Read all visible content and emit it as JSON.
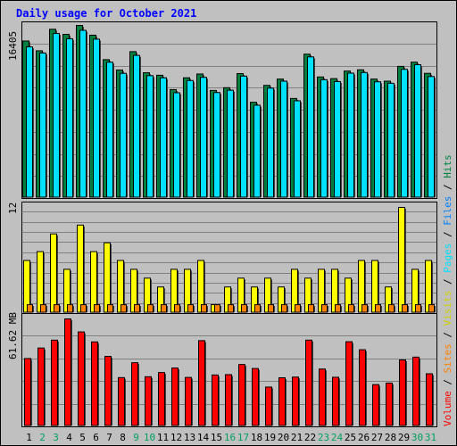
{
  "chart_data": {
    "type": "bar",
    "title": "Daily usage for October 2021",
    "days": [
      "1",
      "2",
      "3",
      "4",
      "5",
      "6",
      "7",
      "8",
      "9",
      "10",
      "11",
      "12",
      "13",
      "14",
      "15",
      "16",
      "17",
      "18",
      "19",
      "20",
      "21",
      "22",
      "23",
      "24",
      "25",
      "26",
      "27",
      "28",
      "29",
      "30",
      "31"
    ],
    "weekend_days": [
      2,
      3,
      9,
      10,
      16,
      17,
      23,
      24,
      30,
      31
    ],
    "top_panel": {
      "ymax_label": "16405",
      "ymax": 16405,
      "series": [
        {
          "name": "Hits",
          "color": "#008040",
          "values": [
            14928,
            14000,
            16040,
            15560,
            16405,
            15480,
            13160,
            12180,
            13920,
            11920,
            11680,
            10320,
            11440,
            11800,
            10240,
            10500,
            11840,
            9120,
            10720,
            11320,
            9480,
            13680,
            11520,
            11360,
            12080,
            12200,
            11320,
            11120,
            12520,
            12920,
            11860
          ]
        },
        {
          "name": "Files",
          "color": "#0080ff",
          "values": [
            14370,
            13790,
            15640,
            15140,
            15940,
            15100,
            12920,
            11860,
            13560,
            11640,
            11440,
            10020,
            11180,
            11480,
            10040,
            10260,
            11600,
            8840,
            10460,
            11120,
            9260,
            13420,
            11260,
            11080,
            11880,
            11940,
            11060,
            10920,
            12240,
            12680,
            11560
          ]
        },
        {
          "name": "Pages",
          "color": "#00e0ff",
          "values": [
            14370,
            13790,
            15640,
            15140,
            15940,
            15100,
            12920,
            11860,
            13560,
            11640,
            11440,
            10020,
            11180,
            11480,
            10040,
            10260,
            11600,
            8840,
            10460,
            11120,
            9260,
            13420,
            11260,
            11080,
            11880,
            11940,
            11060,
            10920,
            12240,
            12680,
            11560
          ]
        }
      ]
    },
    "middle_panel": {
      "ymax_label": "12",
      "ymax": 12,
      "series": [
        {
          "name": "Visits",
          "color": "#ffff00",
          "values": [
            6,
            7,
            9,
            5,
            10,
            7,
            8,
            6,
            5,
            4,
            3,
            5,
            5,
            6,
            1,
            3,
            4,
            3,
            4,
            3,
            5,
            4,
            5,
            5,
            4,
            6,
            6,
            3,
            12,
            5,
            6
          ]
        },
        {
          "name": "Sites",
          "color": "#ff8000",
          "values": [
            1,
            1,
            1,
            1,
            1,
            1,
            1,
            1,
            1,
            1,
            1,
            1,
            1,
            1,
            1,
            1,
            1,
            1,
            1,
            1,
            1,
            1,
            1,
            1,
            1,
            1,
            1,
            1,
            1,
            1,
            1
          ]
        }
      ]
    },
    "bottom_panel": {
      "ymax_label": "61.62 MB",
      "ymax": 61.62,
      "unit": "MB",
      "series": [
        {
          "name": "Volume",
          "color": "#ff0000",
          "values": [
            39.0,
            45.0,
            49.5,
            61.62,
            54.2,
            48.5,
            40.2,
            28.1,
            36.6,
            28.6,
            31.0,
            33.6,
            28.2,
            49.2,
            29.6,
            29.8,
            35.6,
            33.3,
            22.7,
            28.0,
            28.4,
            49.5,
            33.0,
            28.3,
            48.6,
            44.0,
            24.1,
            25.0,
            38.2,
            39.8,
            30.3
          ]
        }
      ]
    },
    "right_label_middle": {
      "words": [
        "Hits",
        "Files",
        "Pages",
        "Visits",
        "Sites",
        "Volume"
      ],
      "separator": " / "
    }
  },
  "colors": {
    "background": "#c0c0c0",
    "plot_bg": "#c0c0c0",
    "gridline": "#808080",
    "title": "#0000ff",
    "weekday_label": "#000000",
    "weekend_label": "#00a060",
    "hits": "#008040",
    "files": "#0080ff",
    "pages": "#00e0ff",
    "visits": "#ffff00",
    "sites": "#ff8000",
    "volume": "#ff0000"
  }
}
